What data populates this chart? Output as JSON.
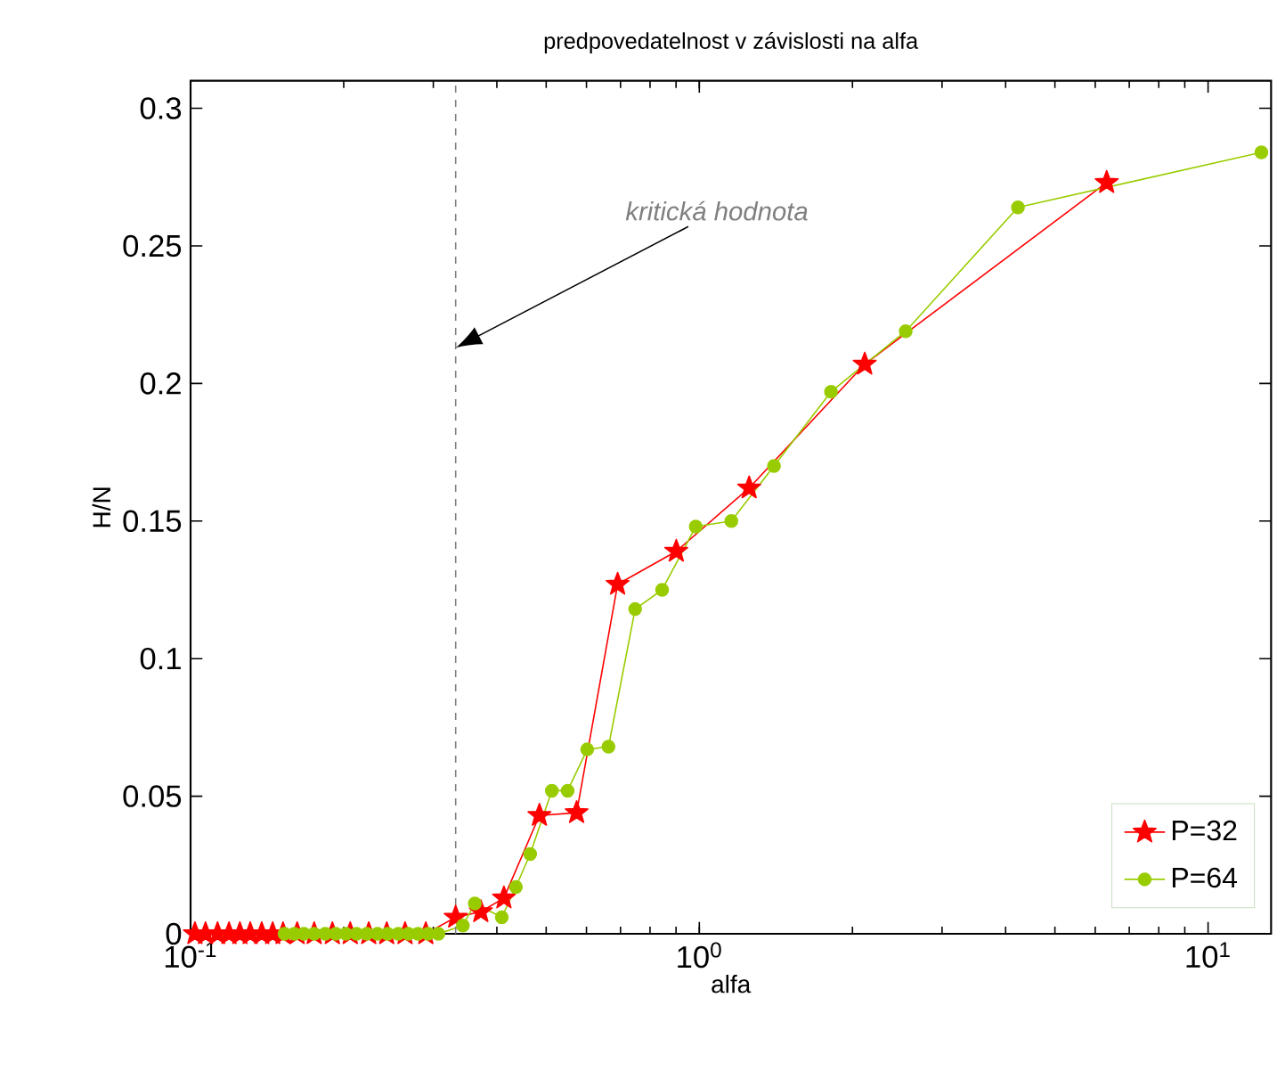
{
  "chart_data": {
    "type": "line",
    "title": "predpovedatelnost v závislosti na alfa",
    "xlabel": "alfa",
    "ylabel": "H/N",
    "log": "x",
    "xlim": [
      0.1,
      13.3
    ],
    "ylim": [
      0,
      0.31
    ],
    "xticks": [
      {
        "value": 0.1,
        "label": "10$^{-1}$"
      },
      {
        "value": 1,
        "label": "10$^{0}$"
      },
      {
        "value": 10,
        "label": "10$^{1}$"
      }
    ],
    "yticks": [
      0,
      0.05,
      0.1,
      0.15,
      0.2,
      0.25,
      0.3
    ],
    "legend": "bottom right",
    "line_style": "solid",
    "series": [
      {
        "name": "P=32",
        "color": "#ff0000",
        "marker": "star",
        "x": [
          0.102,
          0.107,
          0.113,
          0.119,
          0.125,
          0.131,
          0.138,
          0.145,
          0.152,
          0.162,
          0.175,
          0.19,
          0.206,
          0.224,
          0.243,
          0.264,
          0.29,
          0.332,
          0.372,
          0.413,
          0.485,
          0.574,
          0.691,
          0.901,
          1.253,
          2.114,
          6.32
        ],
        "values": [
          0,
          0,
          0,
          0,
          0,
          0,
          0,
          0,
          0,
          0,
          0,
          0,
          0,
          0,
          0,
          0,
          0,
          0.006,
          0.008,
          0.013,
          0.043,
          0.044,
          0.127,
          0.139,
          0.162,
          0.207,
          0.273
        ]
      },
      {
        "name": "P=64",
        "color": "#99cc00",
        "marker": "circle",
        "x": [
          0.153,
          0.16,
          0.167,
          0.175,
          0.184,
          0.193,
          0.202,
          0.212,
          0.222,
          0.233,
          0.244,
          0.256,
          0.268,
          0.28,
          0.293,
          0.307,
          0.343,
          0.362,
          0.409,
          0.436,
          0.465,
          0.513,
          0.551,
          0.602,
          0.663,
          0.748,
          0.845,
          0.984,
          1.156,
          1.402,
          1.815,
          2.545,
          4.23,
          12.73
        ],
        "values": [
          0,
          0,
          0,
          0,
          0,
          0,
          0,
          0,
          0,
          0,
          0,
          0,
          0,
          0,
          0,
          0,
          0.003,
          0.011,
          0.006,
          0.017,
          0.029,
          0.052,
          0.052,
          0.067,
          0.068,
          0.118,
          0.125,
          0.148,
          0.15,
          0.17,
          0.197,
          0.219,
          0.264,
          0.284
        ]
      }
    ],
    "ref_lines": [
      {
        "axis": "x",
        "value": 0.332,
        "line_style": "dashed",
        "color": "#808080"
      }
    ],
    "annotations": [
      "kritická hodnota"
    ]
  }
}
